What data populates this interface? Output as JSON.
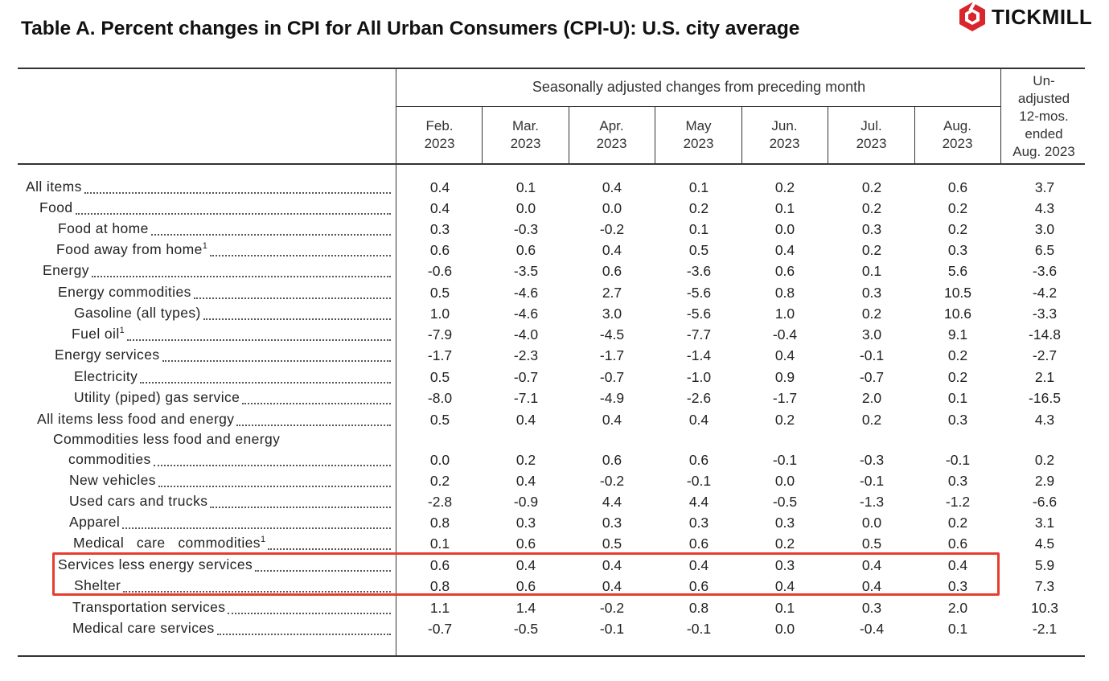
{
  "title": "Table A. Percent changes in CPI for All Urban Consumers (CPI-U): U.S. city average",
  "logo": {
    "text": "TICKMILL",
    "icon": "tickmill-logo-icon",
    "color": "#d8262c"
  },
  "header": {
    "group_label": "Seasonally adjusted changes from preceding month",
    "months": [
      {
        "month": "Feb.",
        "year": "2023"
      },
      {
        "month": "Mar.",
        "year": "2023"
      },
      {
        "month": "Apr.",
        "year": "2023"
      },
      {
        "month": "May",
        "year": "2023"
      },
      {
        "month": "Jun.",
        "year": "2023"
      },
      {
        "month": "Jul.",
        "year": "2023"
      },
      {
        "month": "Aug.",
        "year": "2023"
      }
    ],
    "unadjusted_lines": [
      "Un-",
      "adjusted",
      "12-mos.",
      "ended",
      "Aug. 2023"
    ]
  },
  "rows": [
    {
      "label": "All items",
      "sup": "",
      "values": [
        "0.4",
        "0.1",
        "0.4",
        "0.1",
        "0.2",
        "0.2",
        "0.6",
        "3.7"
      ]
    },
    {
      "label": "Food",
      "sup": "",
      "values": [
        "0.4",
        "0.0",
        "0.0",
        "0.2",
        "0.1",
        "0.2",
        "0.2",
        "4.3"
      ]
    },
    {
      "label": "Food at home",
      "sup": "",
      "values": [
        "0.3",
        "-0.3",
        "-0.2",
        "0.1",
        "0.0",
        "0.3",
        "0.2",
        "3.0"
      ]
    },
    {
      "label": "Food away from home",
      "sup": "1",
      "values": [
        "0.6",
        "0.6",
        "0.4",
        "0.5",
        "0.4",
        "0.2",
        "0.3",
        "6.5"
      ]
    },
    {
      "label": "Energy",
      "sup": "",
      "values": [
        "-0.6",
        "-3.5",
        "0.6",
        "-3.6",
        "0.6",
        "0.1",
        "5.6",
        "-3.6"
      ]
    },
    {
      "label": "Energy commodities",
      "sup": "",
      "values": [
        "0.5",
        "-4.6",
        "2.7",
        "-5.6",
        "0.8",
        "0.3",
        "10.5",
        "-4.2"
      ]
    },
    {
      "label": "Gasoline (all types)",
      "sup": "",
      "values": [
        "1.0",
        "-4.6",
        "3.0",
        "-5.6",
        "1.0",
        "0.2",
        "10.6",
        "-3.3"
      ]
    },
    {
      "label": "Fuel oil",
      "sup": "1",
      "values": [
        "-7.9",
        "-4.0",
        "-4.5",
        "-7.7",
        "-0.4",
        "3.0",
        "9.1",
        "-14.8"
      ]
    },
    {
      "label": "Energy services",
      "sup": "",
      "values": [
        "-1.7",
        "-2.3",
        "-1.7",
        "-1.4",
        "0.4",
        "-0.1",
        "0.2",
        "-2.7"
      ]
    },
    {
      "label": "Electricity",
      "sup": "",
      "values": [
        "0.5",
        "-0.7",
        "-0.7",
        "-1.0",
        "0.9",
        "-0.7",
        "0.2",
        "2.1"
      ]
    },
    {
      "label": "Utility (piped) gas service",
      "sup": "",
      "values": [
        "-8.0",
        "-7.1",
        "-4.9",
        "-2.6",
        "-1.7",
        "2.0",
        "0.1",
        "-16.5"
      ]
    },
    {
      "label": "All items less food and energy",
      "sup": "",
      "values": [
        "0.5",
        "0.4",
        "0.4",
        "0.4",
        "0.2",
        "0.2",
        "0.3",
        "4.3"
      ]
    },
    {
      "label": "commodities",
      "sup": "",
      "label_line1": "Commodities less food and energy",
      "values": [
        "0.0",
        "0.2",
        "0.6",
        "0.6",
        "-0.1",
        "-0.3",
        "-0.1",
        "0.2"
      ]
    },
    {
      "label": "New vehicles",
      "sup": "",
      "values": [
        "0.2",
        "0.4",
        "-0.2",
        "-0.1",
        "0.0",
        "-0.1",
        "0.3",
        "2.9"
      ]
    },
    {
      "label": "Used cars and trucks",
      "sup": "",
      "values": [
        "-2.8",
        "-0.9",
        "4.4",
        "4.4",
        "-0.5",
        "-1.3",
        "-1.2",
        "-6.6"
      ]
    },
    {
      "label": "Apparel",
      "sup": "",
      "values": [
        "0.8",
        "0.3",
        "0.3",
        "0.3",
        "0.3",
        "0.0",
        "0.2",
        "3.1"
      ]
    },
    {
      "label": "Medical   care   commodities",
      "sup": "1",
      "values": [
        "0.1",
        "0.6",
        "0.5",
        "0.6",
        "0.2",
        "0.5",
        "0.6",
        "4.5"
      ]
    },
    {
      "label": "Services less energy services",
      "sup": "",
      "values": [
        "0.6",
        "0.4",
        "0.4",
        "0.4",
        "0.3",
        "0.4",
        "0.4",
        "5.9"
      ]
    },
    {
      "label": "Shelter",
      "sup": "",
      "values": [
        "0.8",
        "0.6",
        "0.4",
        "0.6",
        "0.4",
        "0.4",
        "0.3",
        "7.3"
      ]
    },
    {
      "label": "Transportation services",
      "sup": "",
      "values": [
        "1.1",
        "1.4",
        "-0.2",
        "0.8",
        "0.1",
        "0.3",
        "2.0",
        "10.3"
      ]
    },
    {
      "label": "Medical care services",
      "sup": "",
      "values": [
        "-0.7",
        "-0.5",
        "-0.1",
        "-0.1",
        "0.0",
        "-0.4",
        "0.1",
        "-2.1"
      ]
    }
  ],
  "highlight_color": "#e53d2e"
}
